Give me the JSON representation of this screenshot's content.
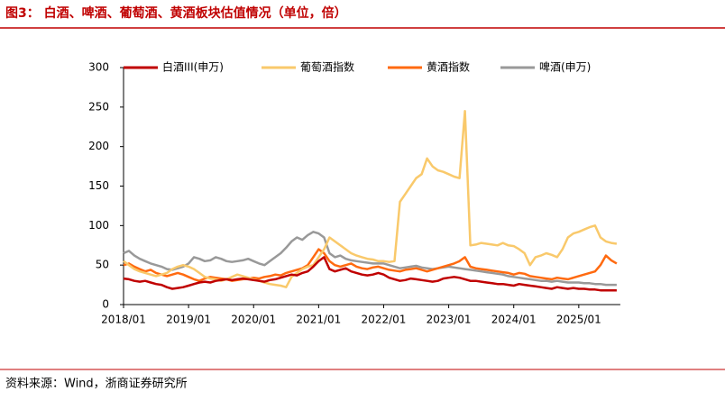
{
  "title": "图3：  白酒、啤酒、葡萄酒、黄酒板块估值情况（单位，倍）",
  "source": "资料来源：Wind，浙商证券研究所",
  "chart_data": {
    "type": "line",
    "x": [
      "2018/01",
      "2018/02",
      "2018/03",
      "2018/04",
      "2018/05",
      "2018/06",
      "2018/07",
      "2018/08",
      "2018/09",
      "2018/10",
      "2018/11",
      "2018/12",
      "2019/01",
      "2019/02",
      "2019/03",
      "2019/04",
      "2019/05",
      "2019/06",
      "2019/07",
      "2019/08",
      "2019/09",
      "2019/10",
      "2019/11",
      "2019/12",
      "2020/01",
      "2020/02",
      "2020/03",
      "2020/04",
      "2020/05",
      "2020/06",
      "2020/07",
      "2020/08",
      "2020/09",
      "2020/10",
      "2020/11",
      "2020/12",
      "2021/01",
      "2021/02",
      "2021/03",
      "2021/04",
      "2021/05",
      "2021/06",
      "2021/07",
      "2021/08",
      "2021/09",
      "2021/10",
      "2021/11",
      "2021/12",
      "2022/01",
      "2022/02",
      "2022/03",
      "2022/04",
      "2022/05",
      "2022/06",
      "2022/07",
      "2022/08",
      "2022/09",
      "2022/10",
      "2022/11",
      "2022/12",
      "2023/01",
      "2023/02",
      "2023/03",
      "2023/04",
      "2023/05",
      "2023/06",
      "2023/07",
      "2023/08",
      "2023/09",
      "2023/10",
      "2023/11",
      "2023/12",
      "2024/01",
      "2024/02",
      "2024/03",
      "2024/04",
      "2024/05",
      "2024/06",
      "2024/07",
      "2024/08",
      "2024/09",
      "2024/10",
      "2024/11",
      "2024/12",
      "2025/01",
      "2025/02",
      "2025/03",
      "2025/04",
      "2025/05",
      "2025/06",
      "2025/07",
      "2025/08"
    ],
    "xtick_every": 12,
    "series": [
      {
        "name": "白酒III(申万)",
        "color": "#c00000",
        "values": [
          33,
          32,
          30,
          29,
          30,
          28,
          26,
          25,
          22,
          20,
          21,
          22,
          24,
          26,
          28,
          29,
          28,
          30,
          31,
          32,
          31,
          32,
          33,
          32,
          31,
          30,
          29,
          31,
          32,
          34,
          36,
          38,
          37,
          40,
          42,
          48,
          55,
          60,
          45,
          42,
          44,
          46,
          42,
          40,
          38,
          37,
          38,
          40,
          38,
          34,
          32,
          30,
          31,
          33,
          32,
          31,
          30,
          29,
          30,
          33,
          34,
          35,
          34,
          32,
          30,
          30,
          29,
          28,
          27,
          26,
          26,
          25,
          24,
          26,
          25,
          24,
          23,
          22,
          21,
          20,
          22,
          21,
          20,
          21,
          20,
          20,
          19,
          19,
          18,
          18,
          18,
          18
        ]
      },
      {
        "name": "葡萄酒指数",
        "color": "#f9c96b",
        "values": [
          55,
          50,
          45,
          42,
          40,
          38,
          36,
          38,
          40,
          45,
          48,
          50,
          48,
          45,
          40,
          35,
          33,
          32,
          30,
          32,
          35,
          38,
          36,
          34,
          32,
          30,
          28,
          26,
          25,
          24,
          22,
          35,
          40,
          45,
          48,
          50,
          60,
          70,
          85,
          80,
          75,
          70,
          65,
          62,
          60,
          58,
          57,
          55,
          55,
          54,
          55,
          130,
          140,
          150,
          160,
          165,
          185,
          175,
          170,
          168,
          165,
          162,
          160,
          245,
          75,
          76,
          78,
          77,
          76,
          75,
          78,
          75,
          74,
          70,
          65,
          50,
          60,
          62,
          65,
          63,
          60,
          70,
          85,
          90,
          92,
          95,
          98,
          100,
          85,
          80,
          78,
          77
        ]
      },
      {
        "name": "黄酒指数",
        "color": "#ff6a10",
        "values": [
          50,
          52,
          48,
          45,
          42,
          44,
          40,
          38,
          36,
          38,
          40,
          38,
          35,
          32,
          30,
          33,
          35,
          34,
          33,
          32,
          30,
          31,
          32,
          33,
          34,
          33,
          35,
          36,
          38,
          37,
          40,
          42,
          44,
          46,
          50,
          60,
          70,
          65,
          55,
          50,
          48,
          50,
          52,
          48,
          46,
          45,
          47,
          48,
          46,
          44,
          43,
          42,
          44,
          45,
          46,
          44,
          42,
          44,
          46,
          48,
          50,
          52,
          55,
          60,
          48,
          46,
          45,
          44,
          43,
          42,
          41,
          40,
          38,
          40,
          39,
          36,
          35,
          34,
          33,
          32,
          34,
          33,
          32,
          34,
          36,
          38,
          40,
          42,
          50,
          62,
          56,
          52
        ]
      },
      {
        "name": "啤酒(申万)",
        "color": "#999999",
        "values": [
          65,
          68,
          62,
          58,
          55,
          52,
          50,
          48,
          45,
          44,
          46,
          48,
          52,
          60,
          58,
          55,
          56,
          60,
          58,
          55,
          54,
          55,
          56,
          58,
          55,
          52,
          50,
          55,
          60,
          65,
          72,
          80,
          85,
          82,
          88,
          92,
          90,
          85,
          65,
          60,
          62,
          58,
          56,
          55,
          54,
          53,
          52,
          52,
          52,
          50,
          48,
          46,
          47,
          48,
          49,
          47,
          46,
          45,
          46,
          47,
          48,
          47,
          46,
          45,
          44,
          43,
          42,
          41,
          40,
          39,
          38,
          36,
          35,
          34,
          33,
          32,
          31,
          30,
          30,
          29,
          30,
          29,
          28,
          28,
          28,
          27,
          27,
          26,
          26,
          25,
          25,
          25
        ]
      }
    ],
    "ylim": [
      0,
      300
    ],
    "yticks": [
      0,
      50,
      100,
      150,
      200,
      250,
      300
    ],
    "grid": false,
    "legend": "top"
  }
}
